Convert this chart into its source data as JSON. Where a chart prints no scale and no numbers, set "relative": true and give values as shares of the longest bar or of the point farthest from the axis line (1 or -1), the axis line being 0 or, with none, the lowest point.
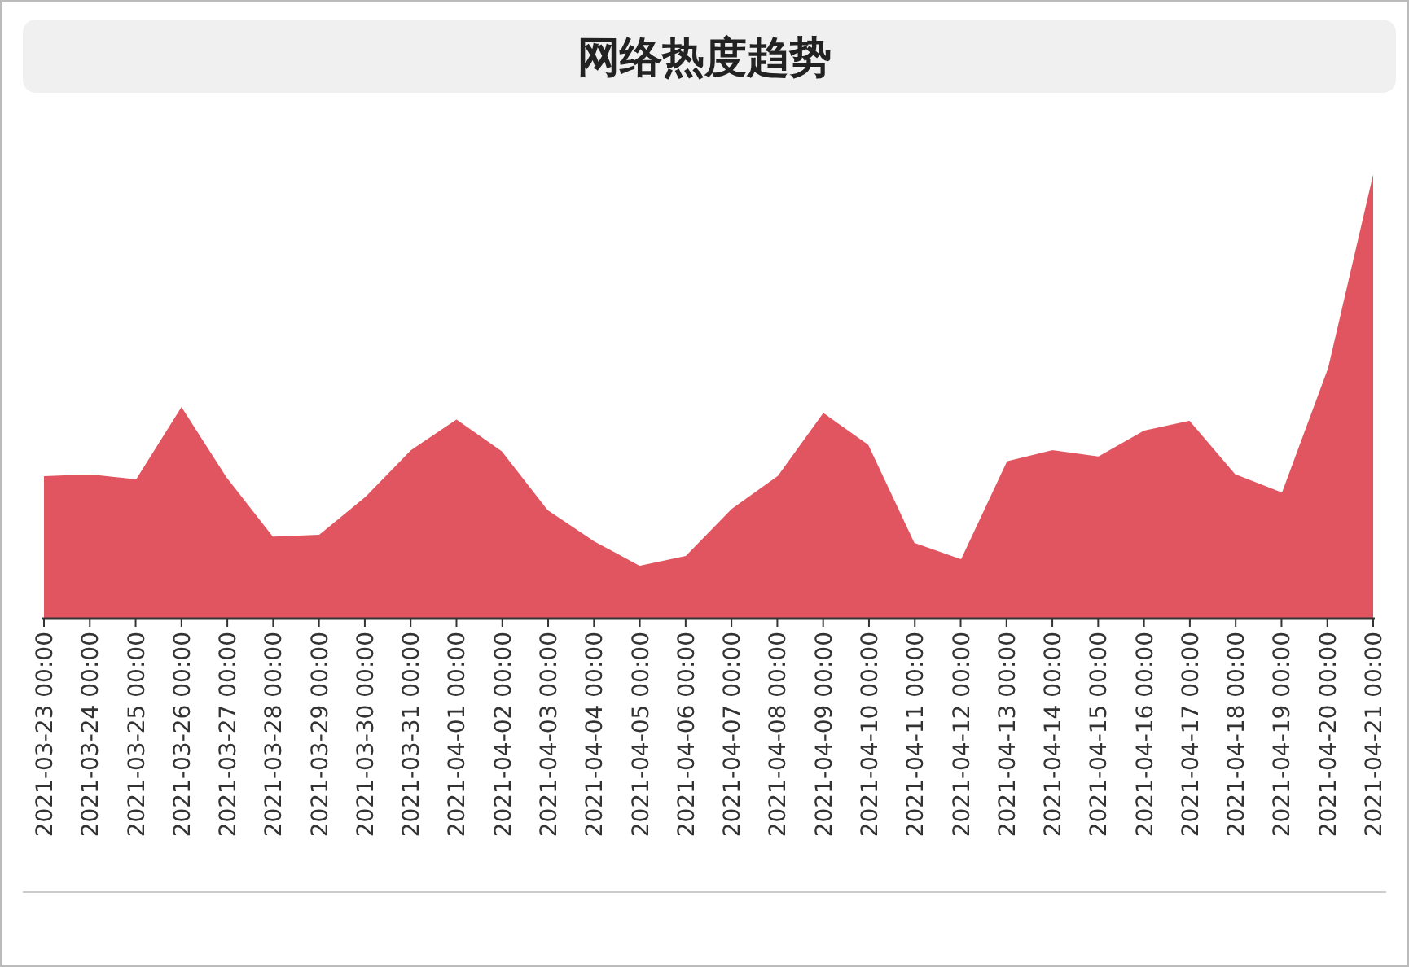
{
  "chart_data": {
    "type": "area",
    "title": "网络热度趋势",
    "relative": true,
    "color": "#e05560",
    "categories": [
      "2021-03-23 00:00",
      "2021-03-24 00:00",
      "2021-03-25 00:00",
      "2021-03-26 00:00",
      "2021-03-27 00:00",
      "2021-03-28 00:00",
      "2021-03-29 00:00",
      "2021-03-30 00:00",
      "2021-03-31 00:00",
      "2021-04-01 00:00",
      "2021-04-02 00:00",
      "2021-04-03 00:00",
      "2021-04-04 00:00",
      "2021-04-05 00:00",
      "2021-04-06 00:00",
      "2021-04-07 00:00",
      "2021-04-08 00:00",
      "2021-04-09 00:00",
      "2021-04-10 00:00",
      "2021-04-11 00:00",
      "2021-04-12 00:00",
      "2021-04-13 00:00",
      "2021-04-14 00:00",
      "2021-04-15 00:00",
      "2021-04-16 00:00",
      "2021-04-17 00:00",
      "2021-04-18 00:00",
      "2021-04-19 00:00",
      "2021-04-20 00:00",
      "2021-04-21 00:00"
    ],
    "values": [
      0.32,
      0.324,
      0.313,
      0.476,
      0.316,
      0.185,
      0.189,
      0.273,
      0.378,
      0.447,
      0.375,
      0.244,
      0.175,
      0.12,
      0.142,
      0.247,
      0.32,
      0.462,
      0.389,
      0.171,
      0.135,
      0.353,
      0.378,
      0.364,
      0.422,
      0.444,
      0.324,
      0.284,
      0.56,
      1
    ],
    "line_style": "solid"
  }
}
